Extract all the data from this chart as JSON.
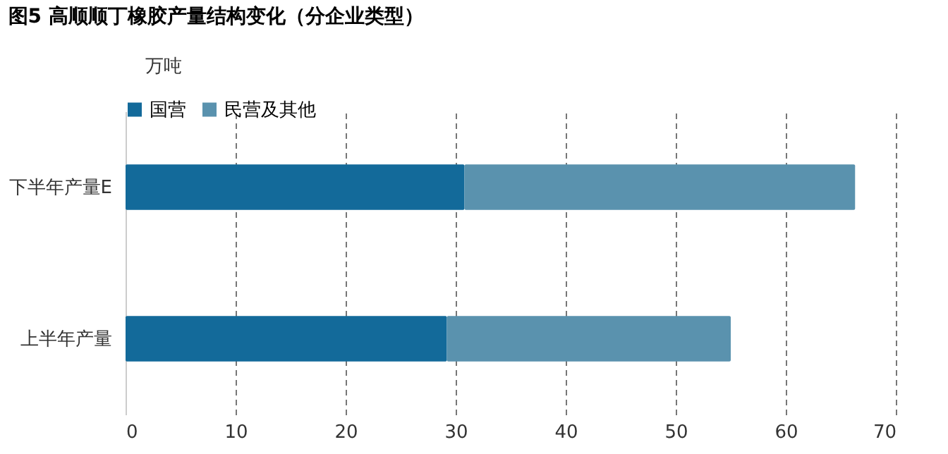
{
  "chart_data": {
    "type": "bar",
    "title": "图5 高顺顺丁橡胶产量结构变化（分企业类型）",
    "xlabel": "万吨",
    "orientation": "horizontal",
    "stacked": true,
    "categories": [
      "下半年产量E",
      "上半年产量"
    ],
    "series": [
      {
        "name": "国营",
        "color": "#136a9a",
        "values": [
          30.8,
          29.2
        ]
      },
      {
        "name": "民营及其他",
        "color": "#5a92ae",
        "values": [
          35.5,
          25.8
        ]
      }
    ],
    "xlim": [
      0,
      70
    ],
    "xticks": [
      0,
      10,
      20,
      30,
      40,
      50,
      60,
      70
    ],
    "grid": "x",
    "legend": "top"
  }
}
